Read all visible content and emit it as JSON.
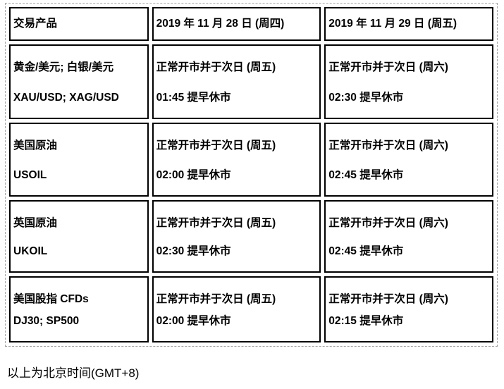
{
  "table": {
    "headers": [
      "交易产品",
      "2019 年 11 月 28 日 (周四)",
      "2019 年 11 月 29 日 (周五)"
    ],
    "rows": [
      {
        "product_line1": "黄金/美元; 白银/美元",
        "product_line2": "XAU/USD;  XAG/USD",
        "day1_line1": "正常开市并于次日 (周五)",
        "day1_line2": "01:45 提早休市",
        "day2_line1": "正常开市并于次日 (周六)",
        "day2_line2": "02:30 提早休市"
      },
      {
        "product_line1": "美国原油",
        "product_line2": "USOIL",
        "day1_line1": "正常开市并于次日 (周五)",
        "day1_line2": "02:00 提早休市",
        "day2_line1": "正常开市并于次日 (周六)",
        "day2_line2": "02:45 提早休市"
      },
      {
        "product_line1": "英国原油",
        "product_line2": "UKOIL",
        "day1_line1": "正常开市并于次日 (周五)",
        "day1_line2": "02:30 提早休市",
        "day2_line1": "正常开市并于次日 (周六)",
        "day2_line2": "02:45 提早休市"
      },
      {
        "product_line1": "美国股指 CFDs",
        "product_line2": "DJ30;  SP500",
        "day1_line1": "正常开市并于次日 (周五)",
        "day1_line2": "02:00 提早休市",
        "day2_line1": "正常开市并于次日 (周六)",
        "day2_line2": "02:15 提早休市"
      }
    ]
  },
  "footer": {
    "note": "以上为北京时间(GMT+8)"
  },
  "colors": {
    "cell_border": "#000000",
    "outer_dashed_border": "#a3a3a3",
    "text": "#000000",
    "background": "#ffffff"
  }
}
